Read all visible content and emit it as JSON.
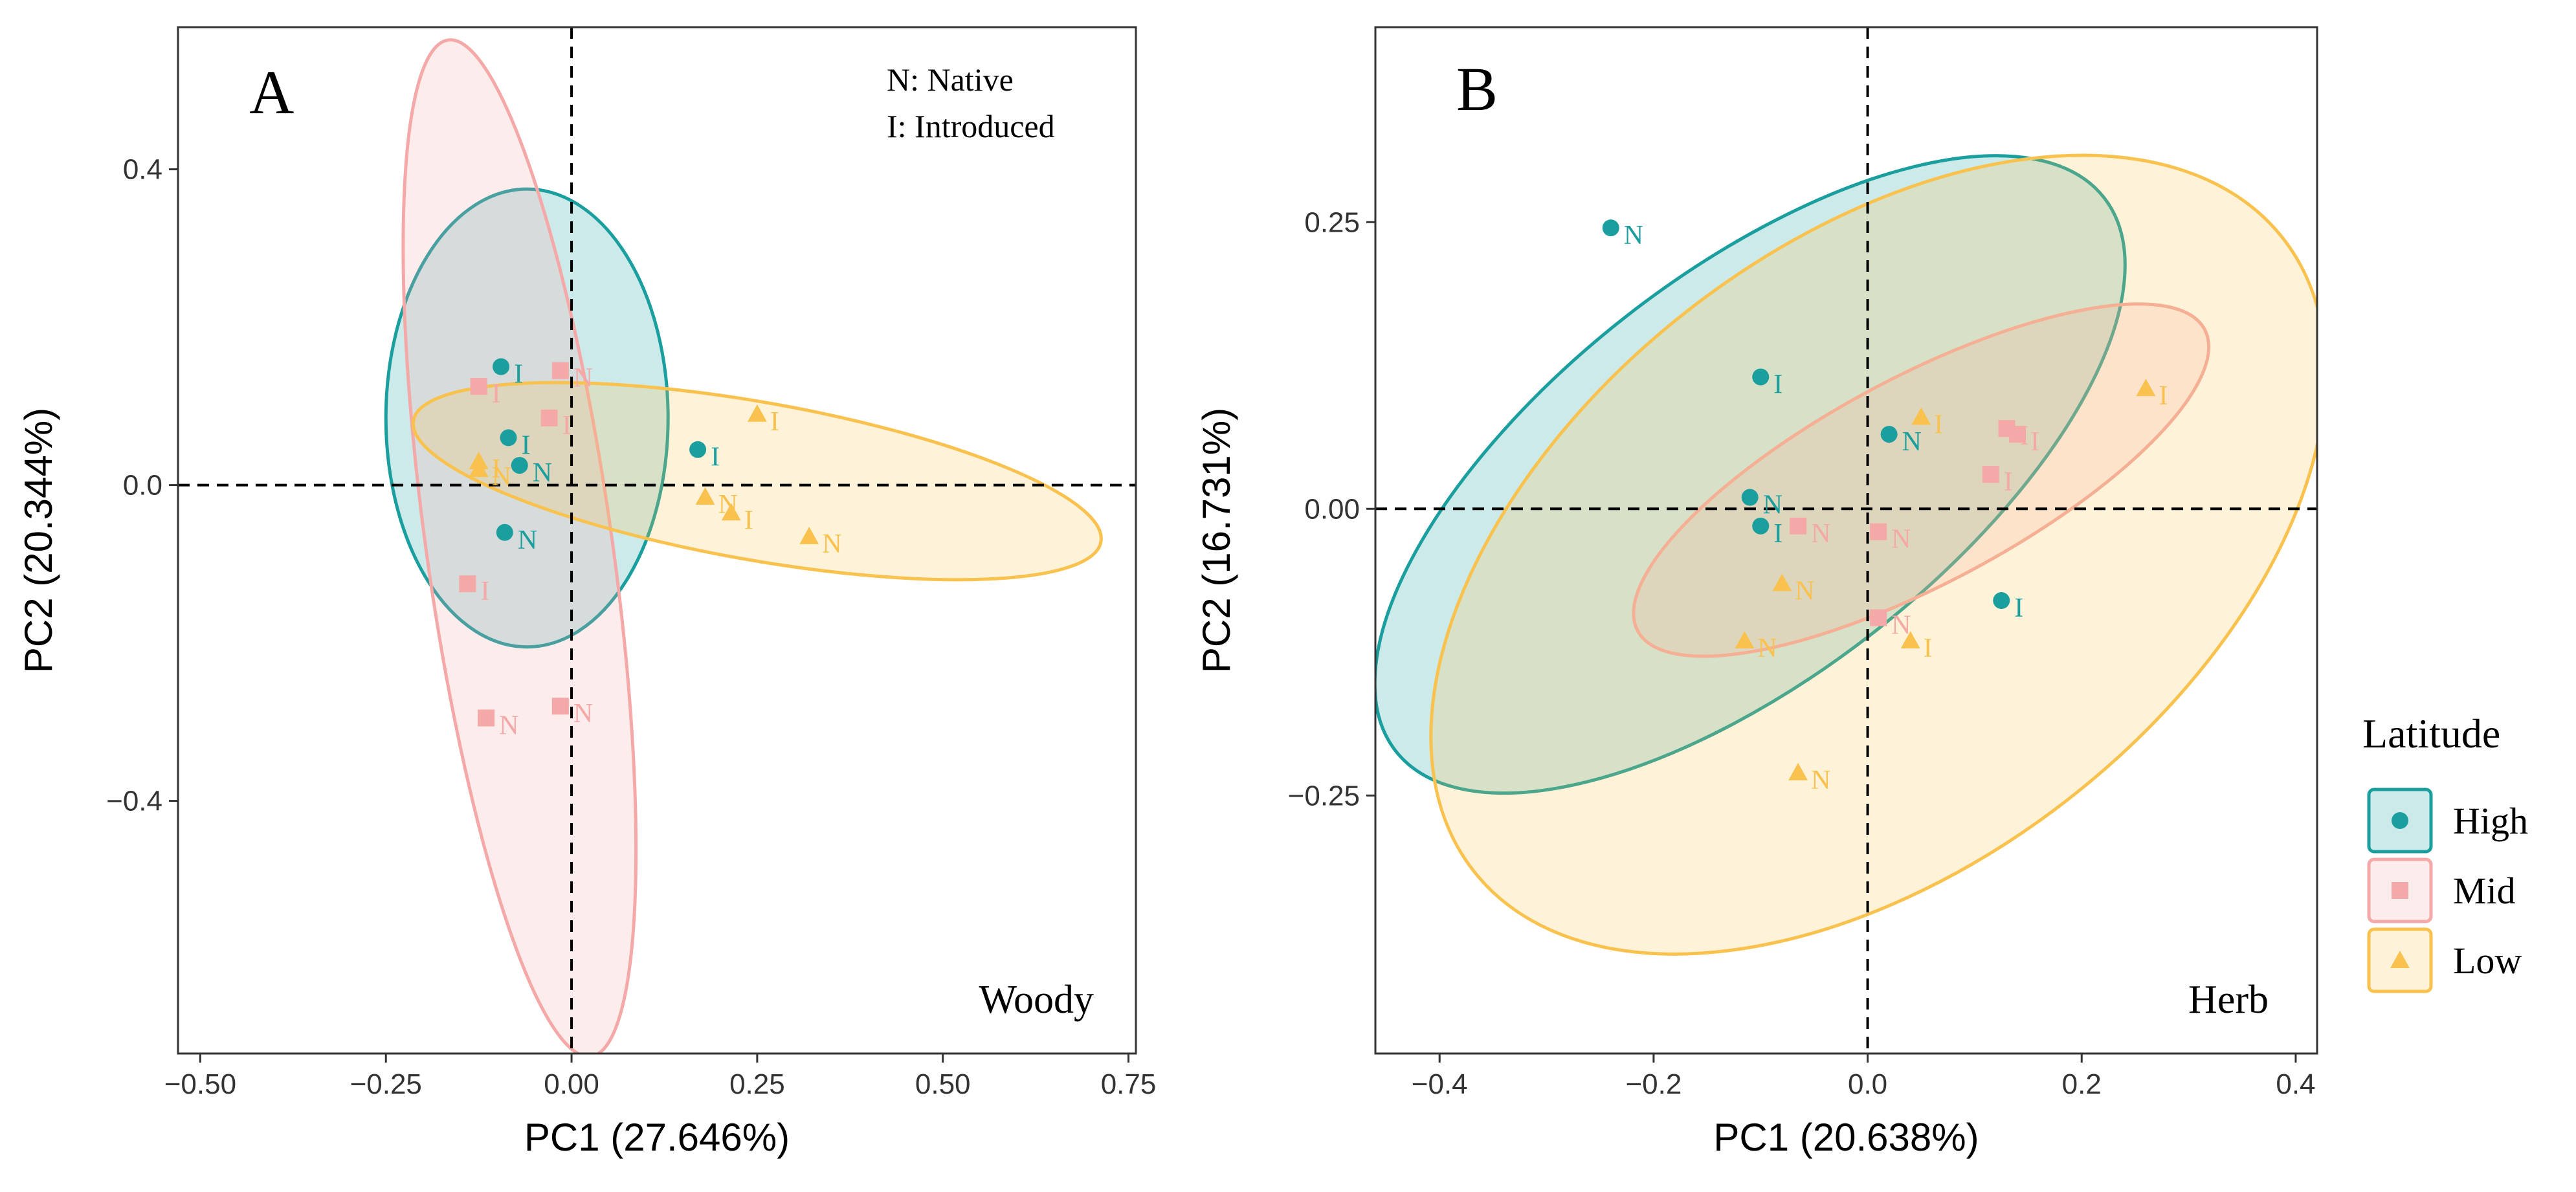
{
  "chart_data": [
    {
      "type": "scatter",
      "panel_label": "A",
      "corner_label": "Woody",
      "note_lines": [
        "N: Native",
        "I:  Introduced"
      ],
      "xlabel": "PC1 (27.646%)",
      "ylabel": "PC2 (20.344%)",
      "xlim": [
        -0.53,
        0.76
      ],
      "ylim": [
        -0.72,
        0.58
      ],
      "xticks": [
        -0.5,
        -0.25,
        0.0,
        0.25,
        0.5,
        0.75
      ],
      "xtick_labels": [
        "−0.50",
        "−0.25",
        "0.00",
        "0.25",
        "0.50",
        "0.75"
      ],
      "yticks": [
        -0.4,
        0.0,
        0.4
      ],
      "ytick_labels": [
        "−0.4",
        "0.0",
        "0.4"
      ],
      "grid": false,
      "reference_lines": {
        "x": 0,
        "y": 0
      },
      "series": [
        {
          "name": "High",
          "color": "#1a9e9e",
          "marker": "circle",
          "points": [
            {
              "x": -0.095,
              "y": 0.15,
              "label": "I"
            },
            {
              "x": -0.085,
              "y": 0.06,
              "label": "I"
            },
            {
              "x": -0.07,
              "y": 0.025,
              "label": "N"
            },
            {
              "x": -0.09,
              "y": -0.06,
              "label": "N"
            },
            {
              "x": 0.17,
              "y": 0.045,
              "label": "I"
            }
          ],
          "ellipse": {
            "cx": -0.06,
            "cy": 0.085,
            "rx": 0.19,
            "ry": 0.29,
            "angle": 0
          }
        },
        {
          "name": "Mid",
          "color": "#f4a9a8",
          "marker": "square",
          "points": [
            {
              "x": -0.125,
              "y": 0.125,
              "label": "I"
            },
            {
              "x": -0.015,
              "y": 0.145,
              "label": "N"
            },
            {
              "x": -0.03,
              "y": 0.085,
              "label": "I"
            },
            {
              "x": -0.14,
              "y": -0.125,
              "label": "I"
            },
            {
              "x": -0.115,
              "y": -0.295,
              "label": "N"
            },
            {
              "x": -0.015,
              "y": -0.28,
              "label": "N"
            }
          ],
          "ellipse": {
            "cx": -0.07,
            "cy": -0.08,
            "rx": 0.125,
            "ry": 0.65,
            "angle": 8
          }
        },
        {
          "name": "Low",
          "color": "#f9c24f",
          "marker": "triangle",
          "points": [
            {
              "x": -0.125,
              "y": 0.03,
              "label": "I"
            },
            {
              "x": -0.125,
              "y": 0.02,
              "label": "N"
            },
            {
              "x": 0.25,
              "y": 0.09,
              "label": "I"
            },
            {
              "x": 0.18,
              "y": -0.015,
              "label": "N"
            },
            {
              "x": 0.215,
              "y": -0.035,
              "label": "I"
            },
            {
              "x": 0.32,
              "y": -0.065,
              "label": "N"
            }
          ],
          "ellipse": {
            "cx": 0.25,
            "cy": 0.005,
            "rx": 0.47,
            "ry": 0.1,
            "angle": -10
          }
        }
      ]
    },
    {
      "type": "scatter",
      "panel_label": "B",
      "corner_label": "Herb",
      "xlabel": "PC1 (20.638%)",
      "ylabel": "PC2 (16.731%)",
      "xlim": [
        -0.46,
        0.42
      ],
      "ylim": [
        -0.475,
        0.42
      ],
      "xticks": [
        -0.4,
        -0.2,
        0.0,
        0.2,
        0.4
      ],
      "xtick_labels": [
        "−0.4",
        "−0.2",
        "0.0",
        "0.2",
        "0.4"
      ],
      "yticks": [
        -0.25,
        0.0,
        0.25
      ],
      "ytick_labels": [
        "−0.25",
        "0.00",
        "0.25"
      ],
      "grid": false,
      "reference_lines": {
        "x": 0,
        "y": 0
      },
      "series": [
        {
          "name": "High",
          "color": "#1a9e9e",
          "marker": "circle",
          "points": [
            {
              "x": -0.24,
              "y": 0.245,
              "label": "N"
            },
            {
              "x": -0.1,
              "y": 0.115,
              "label": "I"
            },
            {
              "x": 0.02,
              "y": 0.065,
              "label": "N"
            },
            {
              "x": -0.11,
              "y": 0.01,
              "label": "N"
            },
            {
              "x": -0.1,
              "y": -0.015,
              "label": "I"
            },
            {
              "x": 0.125,
              "y": -0.08,
              "label": "I"
            }
          ],
          "ellipse": {
            "cx": -0.11,
            "cy": 0.03,
            "rx": 0.42,
            "ry": 0.175,
            "angle": 38
          }
        },
        {
          "name": "Mid",
          "color": "#f4a9a8",
          "marker": "square",
          "points": [
            {
              "x": 0.13,
              "y": 0.07,
              "label": "I"
            },
            {
              "x": 0.14,
              "y": 0.065,
              "label": "I"
            },
            {
              "x": 0.115,
              "y": 0.03,
              "label": "I"
            },
            {
              "x": -0.065,
              "y": -0.015,
              "label": "N"
            },
            {
              "x": 0.01,
              "y": -0.02,
              "label": "N"
            },
            {
              "x": 0.01,
              "y": -0.095,
              "label": "N"
            }
          ],
          "ellipse": {
            "cx": 0.05,
            "cy": 0.025,
            "rx": 0.3,
            "ry": 0.09,
            "angle": 28
          }
        },
        {
          "name": "Low",
          "color": "#f9c24f",
          "marker": "triangle",
          "points": [
            {
              "x": 0.26,
              "y": 0.105,
              "label": "I"
            },
            {
              "x": 0.05,
              "y": 0.08,
              "label": "I"
            },
            {
              "x": -0.08,
              "y": -0.065,
              "label": "N"
            },
            {
              "x": -0.115,
              "y": -0.115,
              "label": "N"
            },
            {
              "x": 0.04,
              "y": -0.115,
              "label": "I"
            },
            {
              "x": -0.065,
              "y": -0.23,
              "label": "N"
            }
          ],
          "ellipse": {
            "cx": 0.01,
            "cy": -0.04,
            "rx": 0.48,
            "ry": 0.27,
            "angle": 38
          }
        }
      ]
    }
  ],
  "legend": {
    "title": "Latitude",
    "items": [
      {
        "name": "High",
        "color": "#1a9e9e",
        "marker": "circle"
      },
      {
        "name": "Mid",
        "color": "#f4a9a8",
        "marker": "square"
      },
      {
        "name": "Low",
        "color": "#f9c24f",
        "marker": "triangle"
      }
    ]
  }
}
